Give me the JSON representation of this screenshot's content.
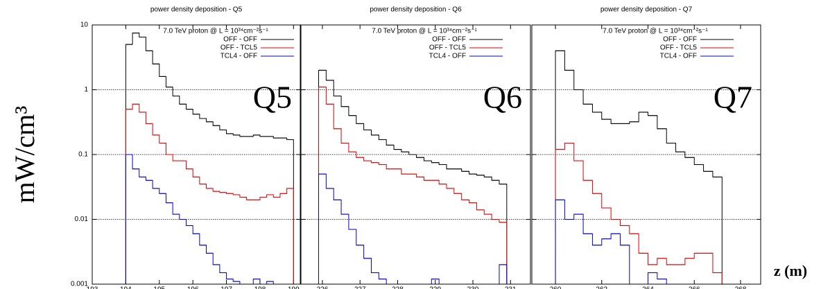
{
  "ylabel": "mW/cm³",
  "xlabel": "z (m)",
  "chart_data": [
    {
      "type": "step",
      "title": "power density deposition - Q5",
      "annotation": "7.0 TeV proton @ L = 10³⁴cm⁻²s⁻¹",
      "label": "Q5",
      "log_y": true,
      "grid": true,
      "xlim": [
        193,
        199.2
      ],
      "ylim": [
        0.001,
        10
      ],
      "xticks": [
        193,
        194,
        195,
        196,
        197,
        198,
        199
      ],
      "yticks": [
        0.001,
        0.01,
        0.1,
        1,
        10
      ],
      "x": [
        194.0,
        194.2,
        194.4,
        194.6,
        194.8,
        195.0,
        195.2,
        195.4,
        195.6,
        195.8,
        196.0,
        196.2,
        196.4,
        196.6,
        196.8,
        197.0,
        197.2,
        197.4,
        197.6,
        197.8,
        198.0,
        198.2,
        198.4,
        198.6,
        198.8
      ],
      "series": [
        {
          "name": "OFF - OFF",
          "color": "#000000",
          "values": [
            5,
            7.5,
            6.5,
            4,
            2.5,
            1.6,
            1.1,
            0.8,
            0.6,
            0.5,
            0.42,
            0.36,
            0.32,
            0.28,
            0.24,
            0.21,
            0.2,
            0.19,
            0.19,
            0.2,
            0.19,
            0.19,
            0.18,
            0.18,
            0.17
          ]
        },
        {
          "name": "OFF - TCL5",
          "color": "#e00000",
          "values": [
            0.5,
            0.6,
            0.45,
            0.3,
            0.2,
            0.15,
            0.1,
            0.08,
            0.08,
            0.06,
            0.045,
            0.035,
            0.03,
            0.027,
            0.026,
            0.025,
            0.024,
            0.022,
            0.02,
            0.02,
            0.022,
            0.024,
            0.022,
            0.025,
            0.03
          ]
        },
        {
          "name": "TCL4 - OFF",
          "color": "#0000d0",
          "values": [
            0.1,
            0.06,
            0.045,
            0.04,
            0.03,
            0.025,
            0.018,
            0.012,
            0.01,
            0.008,
            0.006,
            0.004,
            0.003,
            0.002,
            0.0015,
            0.0012,
            0.0011,
            null,
            null,
            0.0012,
            null,
            0.0011,
            null,
            null,
            null
          ]
        }
      ]
    },
    {
      "type": "step",
      "title": "power density deposition - Q6",
      "annotation": "7.0 TeV proton @ L = 10³⁴cm⁻²s⁻¹",
      "label": "Q6",
      "log_y": true,
      "grid": true,
      "xlim": [
        225.43,
        231.53
      ],
      "ylim": [
        0.001,
        10
      ],
      "xticks": [
        226,
        227,
        228,
        229,
        230,
        231
      ],
      "x": [
        225.9,
        226.1,
        226.3,
        226.5,
        226.7,
        226.9,
        227.1,
        227.3,
        227.5,
        227.7,
        227.9,
        228.1,
        228.3,
        228.5,
        228.7,
        228.9,
        229.1,
        229.3,
        229.5,
        229.7,
        229.9,
        230.1,
        230.3,
        230.5,
        230.7
      ],
      "series": [
        {
          "name": "OFF - OFF",
          "color": "#000000",
          "values": [
            2,
            1.4,
            0.8,
            0.55,
            0.4,
            0.3,
            0.24,
            0.2,
            0.17,
            0.14,
            0.12,
            0.11,
            0.1,
            0.09,
            0.08,
            0.075,
            0.07,
            0.06,
            0.06,
            0.055,
            0.05,
            0.048,
            0.045,
            0.04,
            0.035
          ]
        },
        {
          "name": "OFF - TCL5",
          "color": "#e00000",
          "values": [
            1.1,
            0.6,
            0.25,
            0.15,
            0.11,
            0.09,
            0.08,
            0.075,
            0.07,
            0.06,
            0.06,
            0.05,
            0.05,
            0.045,
            0.04,
            0.04,
            0.035,
            0.03,
            0.025,
            0.02,
            0.018,
            0.014,
            0.012,
            0.01,
            0.009
          ]
        },
        {
          "name": "TCL4 - OFF",
          "color": "#0000d0",
          "values": [
            0.05,
            0.03,
            0.02,
            0.012,
            0.007,
            0.004,
            0.0025,
            0.0015,
            0.0012,
            null,
            null,
            null,
            null,
            null,
            null,
            0.0012,
            null,
            null,
            null,
            null,
            null,
            null,
            null,
            null,
            0.002
          ]
        }
      ]
    },
    {
      "type": "step",
      "title": "power density deposition - Q7",
      "annotation": "7.0 TeV proton @ L = 10³⁴cm⁻²s⁻¹",
      "label": "Q7",
      "log_y": true,
      "grid": true,
      "xlim": [
        258.98,
        268.87
      ],
      "ylim": [
        0.001,
        10
      ],
      "xticks": [
        260,
        262,
        264,
        266,
        268
      ],
      "x": [
        260.0,
        260.4,
        260.8,
        261.2,
        261.6,
        262.0,
        262.4,
        262.8,
        263.2,
        263.6,
        264.0,
        264.4,
        264.8,
        265.2,
        265.6,
        266.0,
        266.4,
        266.8
      ],
      "series": [
        {
          "name": "OFF - OFF",
          "color": "#000000",
          "values": [
            4,
            2,
            1,
            0.6,
            0.45,
            0.35,
            0.3,
            0.3,
            0.32,
            0.45,
            0.4,
            0.25,
            0.15,
            0.11,
            0.09,
            0.07,
            0.055,
            0.045
          ]
        },
        {
          "name": "OFF - TCL5",
          "color": "#e00000",
          "values": [
            0.12,
            0.15,
            0.08,
            0.04,
            0.025,
            0.015,
            0.01,
            0.008,
            0.006,
            0.003,
            0.002,
            0.0025,
            0.002,
            0.002,
            0.0025,
            0.003,
            0.003,
            0.0015
          ]
        },
        {
          "name": "TCL4 - OFF",
          "color": "#0000d0",
          "values": [
            0.02,
            0.01,
            0.012,
            0.006,
            0.004,
            0.005,
            0.006,
            0.004,
            null,
            null,
            0.0015,
            0.0012,
            null,
            null,
            null,
            null,
            null,
            null
          ]
        }
      ]
    }
  ]
}
